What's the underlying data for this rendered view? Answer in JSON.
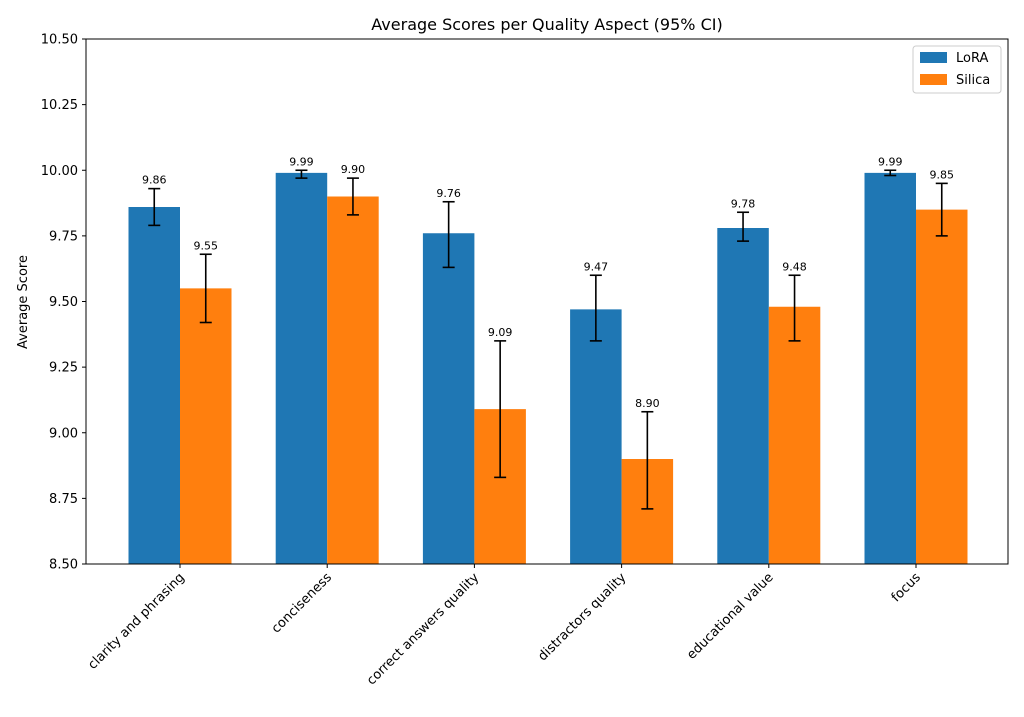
{
  "chart_data": {
    "type": "bar",
    "title": "Average Scores per Quality Aspect (95% CI)",
    "xlabel": "",
    "ylabel": "Average Score",
    "ylim": [
      8.5,
      10.5
    ],
    "yticks": [
      8.5,
      8.75,
      9.0,
      9.25,
      9.5,
      9.75,
      10.0,
      10.25,
      10.5
    ],
    "ytick_labels": [
      "8.50",
      "8.75",
      "9.00",
      "9.25",
      "9.50",
      "9.75",
      "10.00",
      "10.25",
      "10.50"
    ],
    "categories": [
      "clarity and phrasing",
      "conciseness",
      "correct answers quality",
      "distractors quality",
      "educational value",
      "focus"
    ],
    "series": [
      {
        "name": "LoRA",
        "color": "#1f77b4",
        "values": [
          9.86,
          9.99,
          9.76,
          9.47,
          9.78,
          9.99
        ],
        "labels": [
          "9.86",
          "9.99",
          "9.76",
          "9.47",
          "9.78",
          "9.99"
        ],
        "ci_low": [
          9.79,
          9.97,
          9.63,
          9.35,
          9.73,
          9.98
        ],
        "ci_high": [
          9.93,
          10.0,
          9.88,
          9.6,
          9.84,
          10.0
        ]
      },
      {
        "name": "Silica",
        "color": "#ff7f0e",
        "values": [
          9.55,
          9.9,
          9.09,
          8.9,
          9.48,
          9.85
        ],
        "labels": [
          "9.55",
          "9.90",
          "9.09",
          "8.90",
          "9.48",
          "9.85"
        ],
        "ci_low": [
          9.42,
          9.83,
          8.83,
          8.71,
          9.35,
          9.75
        ],
        "ci_high": [
          9.68,
          9.97,
          9.35,
          9.08,
          9.6,
          9.95
        ]
      }
    ],
    "legend_position": "top-right",
    "grid": false
  }
}
